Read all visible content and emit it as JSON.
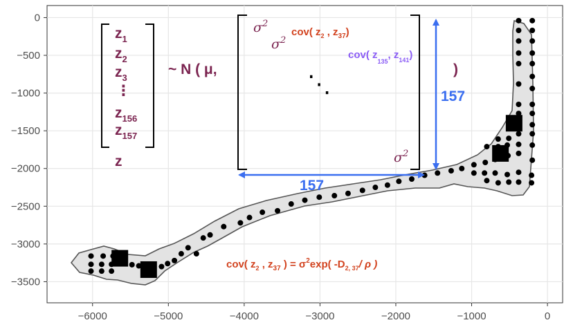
{
  "chart_data": {
    "type": "scatter",
    "x_ticks": [
      "−6000",
      "−5000",
      "−4000",
      "−3000",
      "−2000",
      "−1000",
      "0"
    ],
    "y_ticks": [
      "0",
      "−500",
      "−1000",
      "−1500",
      "−2000",
      "−2500",
      "−3000",
      "−3500"
    ],
    "xlim": [
      -6600,
      200
    ],
    "ylim": [
      -3780,
      160
    ],
    "grid": true,
    "points": [
      [
        -6020,
        -3160
      ],
      [
        -5860,
        -3160
      ],
      [
        -5730,
        -3160
      ],
      [
        -6020,
        -3270
      ],
      [
        -5880,
        -3270
      ],
      [
        -5750,
        -3270
      ],
      [
        -6020,
        -3360
      ],
      [
        -5880,
        -3360
      ],
      [
        -5750,
        -3360
      ],
      [
        -5480,
        -3275
      ],
      [
        -5390,
        -3290
      ],
      [
        -5090,
        -3300
      ],
      [
        -5010,
        -3260
      ],
      [
        -4920,
        -3220
      ],
      [
        -4830,
        -3130
      ],
      [
        -4740,
        -3050
      ],
      [
        -4630,
        -3130
      ],
      [
        -4540,
        -2920
      ],
      [
        -4450,
        -2880
      ],
      [
        -4270,
        -2770
      ],
      [
        -4050,
        -2720
      ],
      [
        -3930,
        -2650
      ],
      [
        -3760,
        -2580
      ],
      [
        -3560,
        -2560
      ],
      [
        -3380,
        -2470
      ],
      [
        -3200,
        -2420
      ],
      [
        -3010,
        -2380
      ],
      [
        -2810,
        -2360
      ],
      [
        -2630,
        -2330
      ],
      [
        -2440,
        -2290
      ],
      [
        -2270,
        -2250
      ],
      [
        -2110,
        -2220
      ],
      [
        -1960,
        -2170
      ],
      [
        -1790,
        -2140
      ],
      [
        -1620,
        -2090
      ],
      [
        -1450,
        -2060
      ],
      [
        -1270,
        -2030
      ],
      [
        -1130,
        -2000
      ],
      [
        -970,
        -1950
      ],
      [
        -820,
        -1920
      ],
      [
        -690,
        -1880
      ],
      [
        -520,
        -1830
      ],
      [
        -380,
        -1800
      ],
      [
        -200,
        -1890
      ],
      [
        -970,
        -2060
      ],
      [
        -830,
        -2060
      ],
      [
        -690,
        -2060
      ],
      [
        -530,
        -2080
      ],
      [
        -380,
        -2050
      ],
      [
        -210,
        -2090
      ],
      [
        -800,
        -2160
      ],
      [
        -650,
        -2190
      ],
      [
        -510,
        -2180
      ],
      [
        -380,
        -2180
      ],
      [
        -210,
        -2190
      ],
      [
        -800,
        -1710
      ],
      [
        -650,
        -1710
      ],
      [
        -530,
        -1690
      ],
      [
        -380,
        -1680
      ],
      [
        -200,
        -1690
      ],
      [
        -650,
        -1610
      ],
      [
        -510,
        -1600
      ],
      [
        -380,
        -1540
      ],
      [
        -200,
        -1540
      ],
      [
        -380,
        -1420
      ],
      [
        -200,
        -1420
      ],
      [
        -380,
        -1270
      ],
      [
        -200,
        -1270
      ],
      [
        -380,
        -1150
      ],
      [
        -200,
        -1150
      ],
      [
        -200,
        -940
      ],
      [
        -380,
        -880
      ],
      [
        -200,
        -780
      ],
      [
        -380,
        -610
      ],
      [
        -200,
        -610
      ],
      [
        -380,
        -470
      ],
      [
        -200,
        -470
      ],
      [
        -380,
        -310
      ],
      [
        -200,
        -310
      ],
      [
        -380,
        -170
      ],
      [
        -200,
        -170
      ],
      [
        -380,
        -40
      ],
      [
        -200,
        -40
      ]
    ],
    "highlight_squares": [
      [
        -5640,
        -3190
      ],
      [
        -5260,
        -3340
      ],
      [
        -620,
        -1800
      ],
      [
        -440,
        -1400
      ]
    ]
  },
  "equation": {
    "z": [
      "z",
      "z",
      "z",
      "⋮",
      "z",
      "z"
    ],
    "z_subs": [
      "1",
      "2",
      "3",
      "",
      "156",
      "157"
    ],
    "z_label": "z",
    "tilde_n": "~ N ( μ,",
    "close_paren": ")",
    "sigma": "σ",
    "sup2": "2",
    "cov_prefix": "cov( z",
    "cov_sub_a": "2",
    "cov_sep": " , z",
    "cov_sub_b": "37",
    "cov_close": ")",
    "cov2_prefix": "cov( z",
    "cov2_sub_a": "135",
    "cov2_sep": ", z",
    "cov2_sub_b": "141",
    "cov2_close": ")",
    "diag_dots": "⋱",
    "dim_vertical": "157",
    "dim_horizontal": "157",
    "formula_prefix": "cov( z",
    "formula_sub_a": "2",
    "formula_sep": " , z",
    "formula_sub_b": "37",
    "formula_mid": " )  = σ",
    "formula_sup": "2",
    "formula_exp": "exp( -D",
    "formula_sub_c": "2, 37",
    "formula_end": "/ ρ )"
  },
  "colors": {
    "matrix_text": "#7b2450",
    "cov_red": "#d2421e",
    "cov_purple": "#8a5cf5",
    "arrow_blue": "#3a6ef0",
    "shape_fill": "#e3e3e3",
    "grid": "#e6e6e6"
  }
}
